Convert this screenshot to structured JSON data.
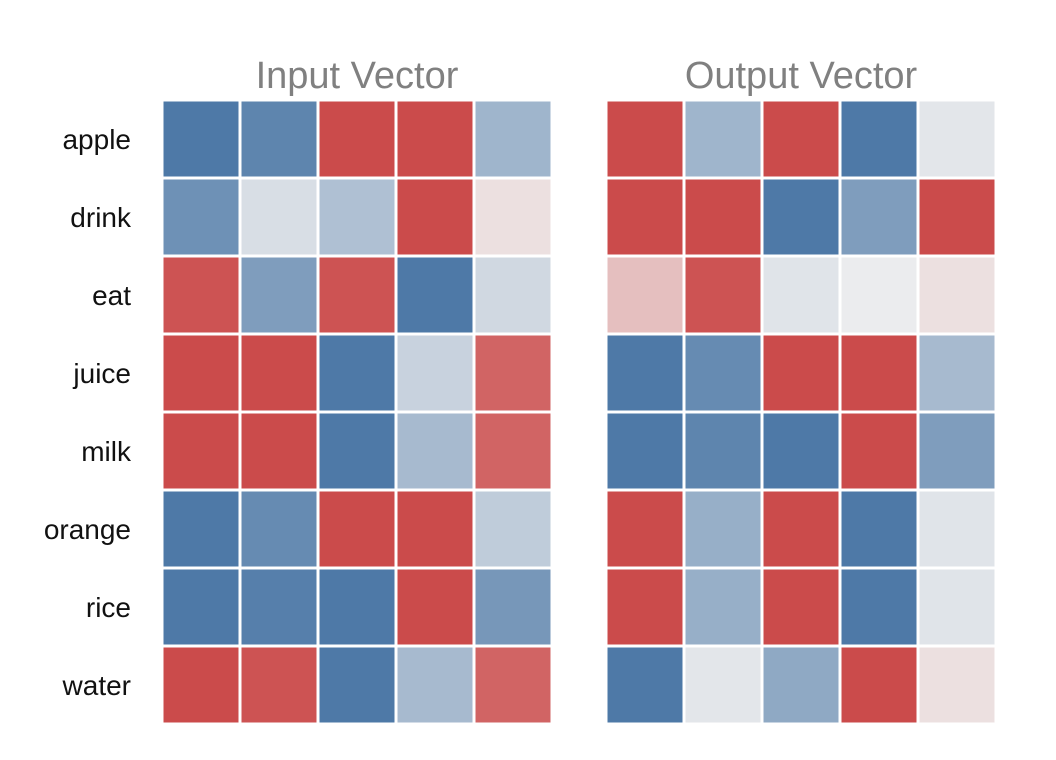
{
  "chart_data": {
    "type": "heatmap",
    "rows": [
      "apple",
      "drink",
      "eat",
      "juice",
      "milk",
      "orange",
      "rice",
      "water"
    ],
    "colors": {
      "negative": "#4e79a7",
      "neutral": "#f0f0f0",
      "positive": "#cb4b4b"
    },
    "panels": [
      {
        "title": "Input Vector",
        "values": [
          [
            -1.0,
            -0.9,
            1.0,
            1.0,
            -0.5
          ],
          [
            -0.8,
            -0.15,
            -0.4,
            1.0,
            0.1
          ],
          [
            0.95,
            -0.7,
            0.95,
            -1.0,
            -0.2
          ],
          [
            1.0,
            1.0,
            -1.0,
            -0.25,
            0.85
          ],
          [
            1.0,
            1.0,
            -1.0,
            -0.45,
            0.85
          ],
          [
            -1.0,
            -0.85,
            1.0,
            1.0,
            -0.3
          ],
          [
            -1.0,
            -0.95,
            -1.0,
            1.0,
            -0.75
          ],
          [
            1.0,
            0.95,
            -1.0,
            -0.45,
            0.85
          ]
        ]
      },
      {
        "title": "Output Vector",
        "values": [
          [
            1.0,
            -0.5,
            1.0,
            -1.0,
            -0.08
          ],
          [
            1.0,
            1.0,
            -1.0,
            -0.7,
            1.0
          ],
          [
            0.3,
            0.95,
            -0.1,
            -0.03,
            0.1
          ],
          [
            -1.0,
            -0.85,
            1.0,
            1.0,
            -0.45
          ],
          [
            -1.0,
            -0.9,
            -1.0,
            1.0,
            -0.7
          ],
          [
            1.0,
            -0.55,
            1.0,
            -1.0,
            -0.1
          ],
          [
            1.0,
            -0.55,
            1.0,
            -1.0,
            -0.1
          ],
          [
            -1.0,
            -0.08,
            -0.6,
            1.0,
            0.1
          ]
        ]
      }
    ]
  }
}
